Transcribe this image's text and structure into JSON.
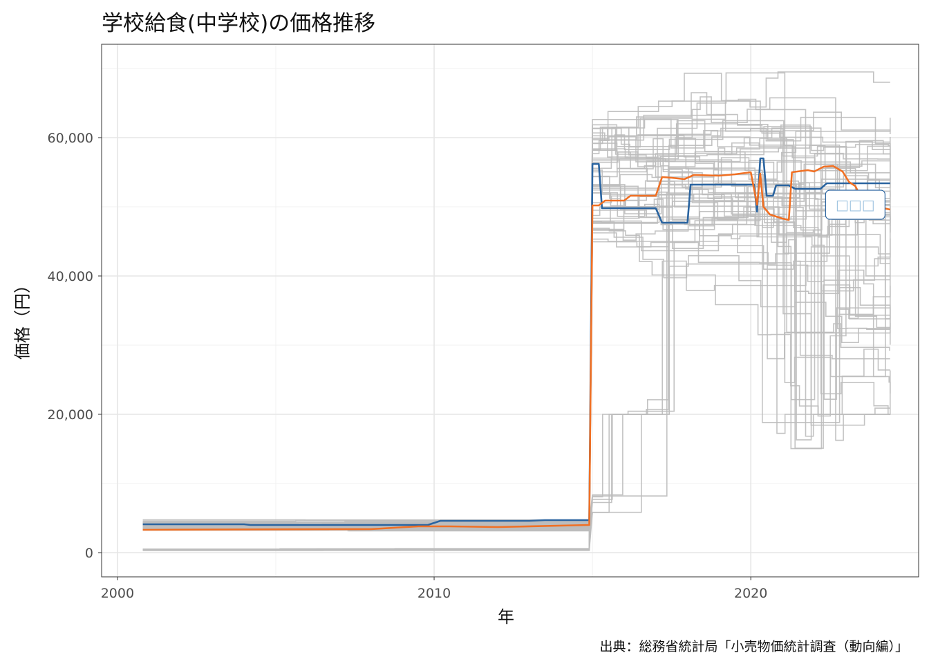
{
  "title": "学校給食(中学校)の価格推移",
  "caption": "出典：総務省統計局「小売物価統計調査（動向編）」",
  "colors": {
    "background_lines": "#bdbdbd",
    "highlight": "#2a64a0",
    "average": "#f07024",
    "grid": "#e6e6e6",
    "panel_border": "#333333"
  },
  "chart_data": {
    "type": "line",
    "title": "学校給食(中学校)の価格推移",
    "xlabel": "年",
    "ylabel": "価格（円）",
    "xlim": [
      1999.5,
      2025.3
    ],
    "ylim": [
      -3500,
      73500
    ],
    "x_ticks": [
      2000,
      2010,
      2020
    ],
    "y_ticks": [
      0,
      20000,
      40000,
      60000
    ],
    "y_tick_labels": [
      "0",
      "20,000",
      "40,000",
      "60,000"
    ],
    "grid": true,
    "legend": "none",
    "annotation": {
      "text": "□□□",
      "x": 2023.3,
      "y": 50300,
      "color": "#2a64a0"
    },
    "series": [
      {
        "role": "highlight",
        "color": "#2a64a0",
        "points": [
          [
            2000.8,
            4100
          ],
          [
            2004.0,
            4100
          ],
          [
            2004.2,
            4000
          ],
          [
            2009.8,
            4000
          ],
          [
            2010.2,
            4600
          ],
          [
            2013.0,
            4600
          ],
          [
            2013.5,
            4700
          ],
          [
            2014.9,
            4700
          ],
          [
            2015.0,
            56200
          ],
          [
            2015.2,
            56200
          ],
          [
            2015.3,
            49800
          ],
          [
            2017.0,
            49800
          ],
          [
            2017.2,
            47700
          ],
          [
            2018.0,
            47700
          ],
          [
            2018.1,
            53200
          ],
          [
            2020.1,
            53200
          ],
          [
            2020.2,
            49300
          ],
          [
            2020.3,
            57000
          ],
          [
            2020.4,
            57000
          ],
          [
            2020.5,
            51600
          ],
          [
            2020.7,
            51600
          ],
          [
            2020.8,
            53100
          ],
          [
            2021.2,
            53100
          ],
          [
            2021.4,
            52600
          ],
          [
            2022.2,
            52600
          ],
          [
            2022.4,
            53400
          ],
          [
            2024.4,
            53400
          ]
        ]
      },
      {
        "role": "average",
        "color": "#f07024",
        "points": [
          [
            2000.8,
            3300
          ],
          [
            2008.0,
            3400
          ],
          [
            2009.5,
            3800
          ],
          [
            2010.5,
            3800
          ],
          [
            2012.0,
            3700
          ],
          [
            2014.9,
            4000
          ],
          [
            2015.0,
            50200
          ],
          [
            2015.2,
            50200
          ],
          [
            2015.4,
            50900
          ],
          [
            2016.0,
            50900
          ],
          [
            2016.2,
            51600
          ],
          [
            2017.0,
            51600
          ],
          [
            2017.2,
            54300
          ],
          [
            2017.5,
            54200
          ],
          [
            2017.9,
            54000
          ],
          [
            2018.2,
            54600
          ],
          [
            2019.0,
            54500
          ],
          [
            2019.5,
            54700
          ],
          [
            2020.0,
            55000
          ],
          [
            2020.2,
            50300
          ],
          [
            2020.3,
            54800
          ],
          [
            2020.4,
            50000
          ],
          [
            2020.6,
            48900
          ],
          [
            2021.0,
            48300
          ],
          [
            2021.2,
            48100
          ],
          [
            2021.3,
            55000
          ],
          [
            2021.8,
            55300
          ],
          [
            2022.0,
            55100
          ],
          [
            2022.3,
            55800
          ],
          [
            2022.6,
            55900
          ],
          [
            2022.9,
            55100
          ],
          [
            2023.1,
            53600
          ],
          [
            2023.3,
            53000
          ],
          [
            2023.5,
            51200
          ],
          [
            2023.8,
            50900
          ],
          [
            2024.0,
            50000
          ],
          [
            2024.4,
            49600
          ]
        ]
      }
    ]
  }
}
